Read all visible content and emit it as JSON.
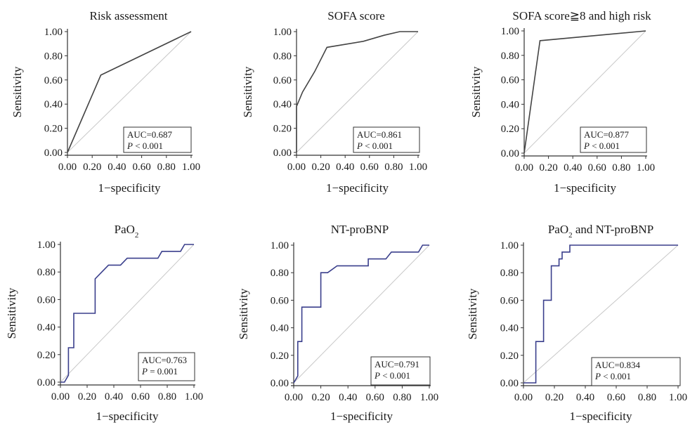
{
  "chart_data": [
    {
      "type": "line",
      "title": "Risk assessment",
      "xlabel": "1−specificity",
      "ylabel": "Sensitivity",
      "xlim": [
        0,
        1
      ],
      "ylim": [
        0,
        1
      ],
      "xticks": [
        "0.00",
        "0.20",
        "0.40",
        "0.60",
        "0.80",
        "1.00"
      ],
      "yticks": [
        "0.00",
        "0.20",
        "0.40",
        "0.60",
        "0.80",
        "1.00"
      ],
      "auc_label": "AUC=0.687",
      "p_label": "P",
      "p_value": "< 0.001",
      "diagonal": true,
      "series": [
        {
          "color": "#444444",
          "x": [
            0,
            0.27,
            1.0
          ],
          "y": [
            0,
            0.64,
            1.0
          ]
        }
      ]
    },
    {
      "type": "line",
      "title": "SOFA score",
      "xlabel": "1−specificity",
      "ylabel": "Sensitivity",
      "xlim": [
        0,
        1
      ],
      "ylim": [
        0,
        1
      ],
      "xticks": [
        "0.00",
        "0.20",
        "0.40",
        "0.60",
        "0.80",
        "1.00"
      ],
      "yticks": [
        "0.00",
        "0.20",
        "0.40",
        "0.60",
        "0.80",
        "1.00"
      ],
      "auc_label": "AUC=0.861",
      "p_label": "P",
      "p_value": "< 0.001",
      "diagonal": true,
      "series": [
        {
          "color": "#444444",
          "x": [
            0,
            0,
            0.05,
            0.15,
            0.25,
            0.55,
            0.72,
            0.85,
            1.0
          ],
          "y": [
            0,
            0.38,
            0.5,
            0.67,
            0.87,
            0.92,
            0.97,
            1.0,
            1.0
          ]
        }
      ]
    },
    {
      "type": "line",
      "title": "SOFA score≧8 and high risk",
      "xlabel": "1−specificity",
      "ylabel": "Sensitivity",
      "xlim": [
        0,
        1
      ],
      "ylim": [
        0,
        1
      ],
      "xticks": [
        "0.00",
        "0.20",
        "0.40",
        "0.60",
        "0.80",
        "1.00"
      ],
      "yticks": [
        "0.00",
        "0.20",
        "0.40",
        "0.60",
        "0.80",
        "1.00"
      ],
      "auc_label": "AUC=0.877",
      "p_label": "P",
      "p_value": "< 0.001",
      "diagonal": true,
      "series": [
        {
          "color": "#444444",
          "x": [
            0,
            0.13,
            1.0
          ],
          "y": [
            0,
            0.92,
            1.0
          ]
        }
      ]
    },
    {
      "type": "line",
      "title": "PaO",
      "title_sub": "2",
      "xlabel": "1−specificity",
      "ylabel": "Sensitivity",
      "xlim": [
        0,
        1
      ],
      "ylim": [
        0,
        1
      ],
      "xticks": [
        "0.00",
        "0.20",
        "0.40",
        "0.60",
        "0.80",
        "1.00"
      ],
      "yticks": [
        "0.00",
        "0.20",
        "0.40",
        "0.60",
        "0.80",
        "1.00"
      ],
      "auc_label": "AUC=0.763",
      "p_label": "P",
      "p_value": "= 0.001",
      "diagonal": true,
      "series": [
        {
          "color": "#3a3f8c",
          "x": [
            0,
            0.03,
            0.06,
            0.06,
            0.1,
            0.1,
            0.26,
            0.26,
            0.36,
            0.45,
            0.5,
            0.73,
            0.76,
            0.9,
            0.93,
            1.0
          ],
          "y": [
            0,
            0,
            0.05,
            0.25,
            0.25,
            0.5,
            0.5,
            0.75,
            0.85,
            0.85,
            0.9,
            0.9,
            0.95,
            0.95,
            1.0,
            1.0
          ]
        }
      ]
    },
    {
      "type": "line",
      "title": "NT-proBNP",
      "xlabel": "1−specificity",
      "ylabel": "Sensitivity",
      "xlim": [
        0,
        1
      ],
      "ylim": [
        0,
        1
      ],
      "xticks": [
        "0.00",
        "0.20",
        "0.40",
        "0.60",
        "0.80",
        "1.00"
      ],
      "yticks": [
        "0.00",
        "0.20",
        "0.40",
        "0.60",
        "0.80",
        "1.00"
      ],
      "auc_label": "AUC=0.791",
      "p_label": "P",
      "p_value": "< 0.001",
      "diagonal": true,
      "series": [
        {
          "color": "#3a3f8c",
          "x": [
            0,
            0.03,
            0.03,
            0.06,
            0.06,
            0.2,
            0.2,
            0.25,
            0.32,
            0.55,
            0.55,
            0.68,
            0.72,
            0.92,
            0.95,
            1.0
          ],
          "y": [
            0,
            0.05,
            0.3,
            0.3,
            0.55,
            0.55,
            0.8,
            0.8,
            0.85,
            0.85,
            0.9,
            0.9,
            0.95,
            0.95,
            1.0,
            1.0
          ]
        }
      ]
    },
    {
      "type": "line",
      "title": "PaO",
      "title_sub": "2",
      "title_rest": " and NT-proBNP",
      "xlabel": "1−specificity",
      "ylabel": "Sensitivity",
      "xlim": [
        0,
        1
      ],
      "ylim": [
        0,
        1
      ],
      "xticks": [
        "0.00",
        "0.20",
        "0.40",
        "0.60",
        "0.80",
        "1.00"
      ],
      "yticks": [
        "0.00",
        "0.20",
        "0.40",
        "0.60",
        "0.80",
        "1.00"
      ],
      "auc_label": "AUC=0.834",
      "p_label": "P",
      "p_value": "< 0.001",
      "diagonal": true,
      "series": [
        {
          "color": "#3a3f8c",
          "x": [
            0,
            0.08,
            0.08,
            0.13,
            0.13,
            0.18,
            0.18,
            0.23,
            0.23,
            0.25,
            0.25,
            0.3,
            0.3,
            1.0
          ],
          "y": [
            0,
            0,
            0.3,
            0.3,
            0.6,
            0.6,
            0.85,
            0.85,
            0.9,
            0.9,
            0.95,
            0.95,
            1.0,
            1.0
          ]
        }
      ]
    }
  ]
}
